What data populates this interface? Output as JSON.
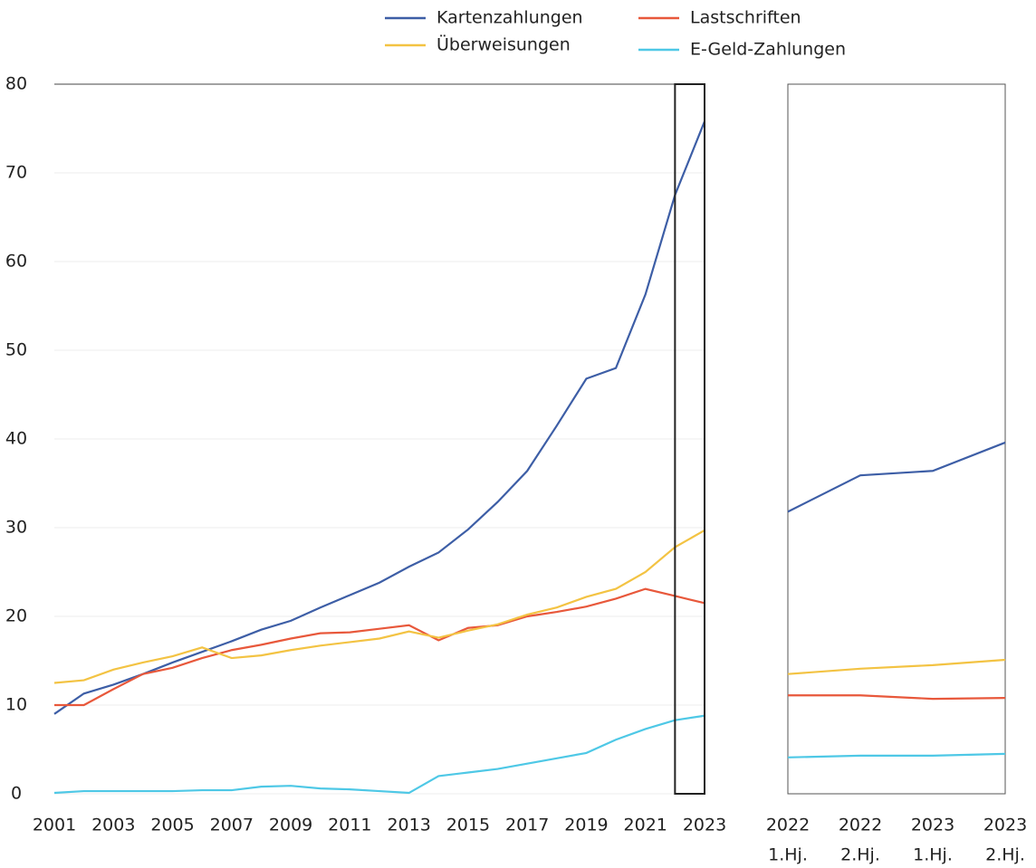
{
  "chart_data": [
    {
      "type": "line",
      "x": [
        2001,
        2002,
        2003,
        2004,
        2005,
        2006,
        2007,
        2008,
        2009,
        2010,
        2011,
        2012,
        2013,
        2014,
        2015,
        2016,
        2017,
        2018,
        2019,
        2020,
        2021,
        2022,
        2023
      ],
      "xlim": [
        2001,
        2023
      ],
      "xticks": [
        2001,
        2003,
        2005,
        2007,
        2009,
        2011,
        2013,
        2015,
        2017,
        2019,
        2021,
        2023
      ],
      "ylim": [
        0,
        80
      ],
      "yticks": [
        0,
        10,
        20,
        30,
        40,
        50,
        60,
        70,
        80
      ],
      "grid": true,
      "legend": "top",
      "series": [
        {
          "name": "Kartenzahlungen",
          "color": "#3d5ea6",
          "values": [
            9,
            11.3,
            12.3,
            13.5,
            14.8,
            16,
            17.2,
            18.5,
            19.5,
            21,
            22.4,
            23.8,
            25.6,
            27.2,
            29.8,
            32.9,
            36.4,
            41.5,
            46.8,
            48,
            56.3,
            67.5,
            75.8
          ]
        },
        {
          "name": "Lastschriften",
          "color": "#e8583b",
          "values": [
            10,
            10,
            11.8,
            13.5,
            14.2,
            15.3,
            16.2,
            16.8,
            17.5,
            18.1,
            18.2,
            18.6,
            19,
            17.3,
            18.7,
            19,
            20,
            20.5,
            21.1,
            22,
            23.1,
            22.3,
            21.5
          ]
        },
        {
          "name": "Überweisungen",
          "color": "#f3c343",
          "values": [
            12.5,
            12.8,
            14,
            14.8,
            15.5,
            16.5,
            15.3,
            15.6,
            16.2,
            16.7,
            17.1,
            17.5,
            18.3,
            17.6,
            18.4,
            19.1,
            20.2,
            21,
            22.2,
            23.1,
            25,
            27.8,
            29.7
          ]
        },
        {
          "name": "E-Geld-Zahlungen",
          "color": "#4ec8e6",
          "values": [
            0.1,
            0.3,
            0.3,
            0.3,
            0.3,
            0.4,
            0.4,
            0.8,
            0.9,
            0.6,
            0.5,
            0.3,
            0.1,
            2,
            2.4,
            2.8,
            3.4,
            4,
            4.6,
            6.1,
            7.3,
            8.3,
            8.8
          ]
        }
      ]
    },
    {
      "type": "line",
      "categories": [
        [
          "2022",
          "1.Hj."
        ],
        [
          "2022",
          "2.Hj."
        ],
        [
          "2023",
          "1.Hj."
        ],
        [
          "2023",
          "2.Hj."
        ]
      ],
      "ylim": [
        0,
        80
      ],
      "series": [
        {
          "color": "#3d5ea6",
          "values": [
            31.8,
            35.9,
            36.4,
            39.6
          ]
        },
        {
          "color": "#e8583b",
          "values": [
            11.1,
            11.1,
            10.7,
            10.8
          ]
        },
        {
          "color": "#f3c343",
          "values": [
            13.5,
            14.1,
            14.5,
            15.1
          ]
        },
        {
          "color": "#4ec8e6",
          "values": [
            4.1,
            4.3,
            4.3,
            4.5
          ]
        }
      ]
    }
  ]
}
